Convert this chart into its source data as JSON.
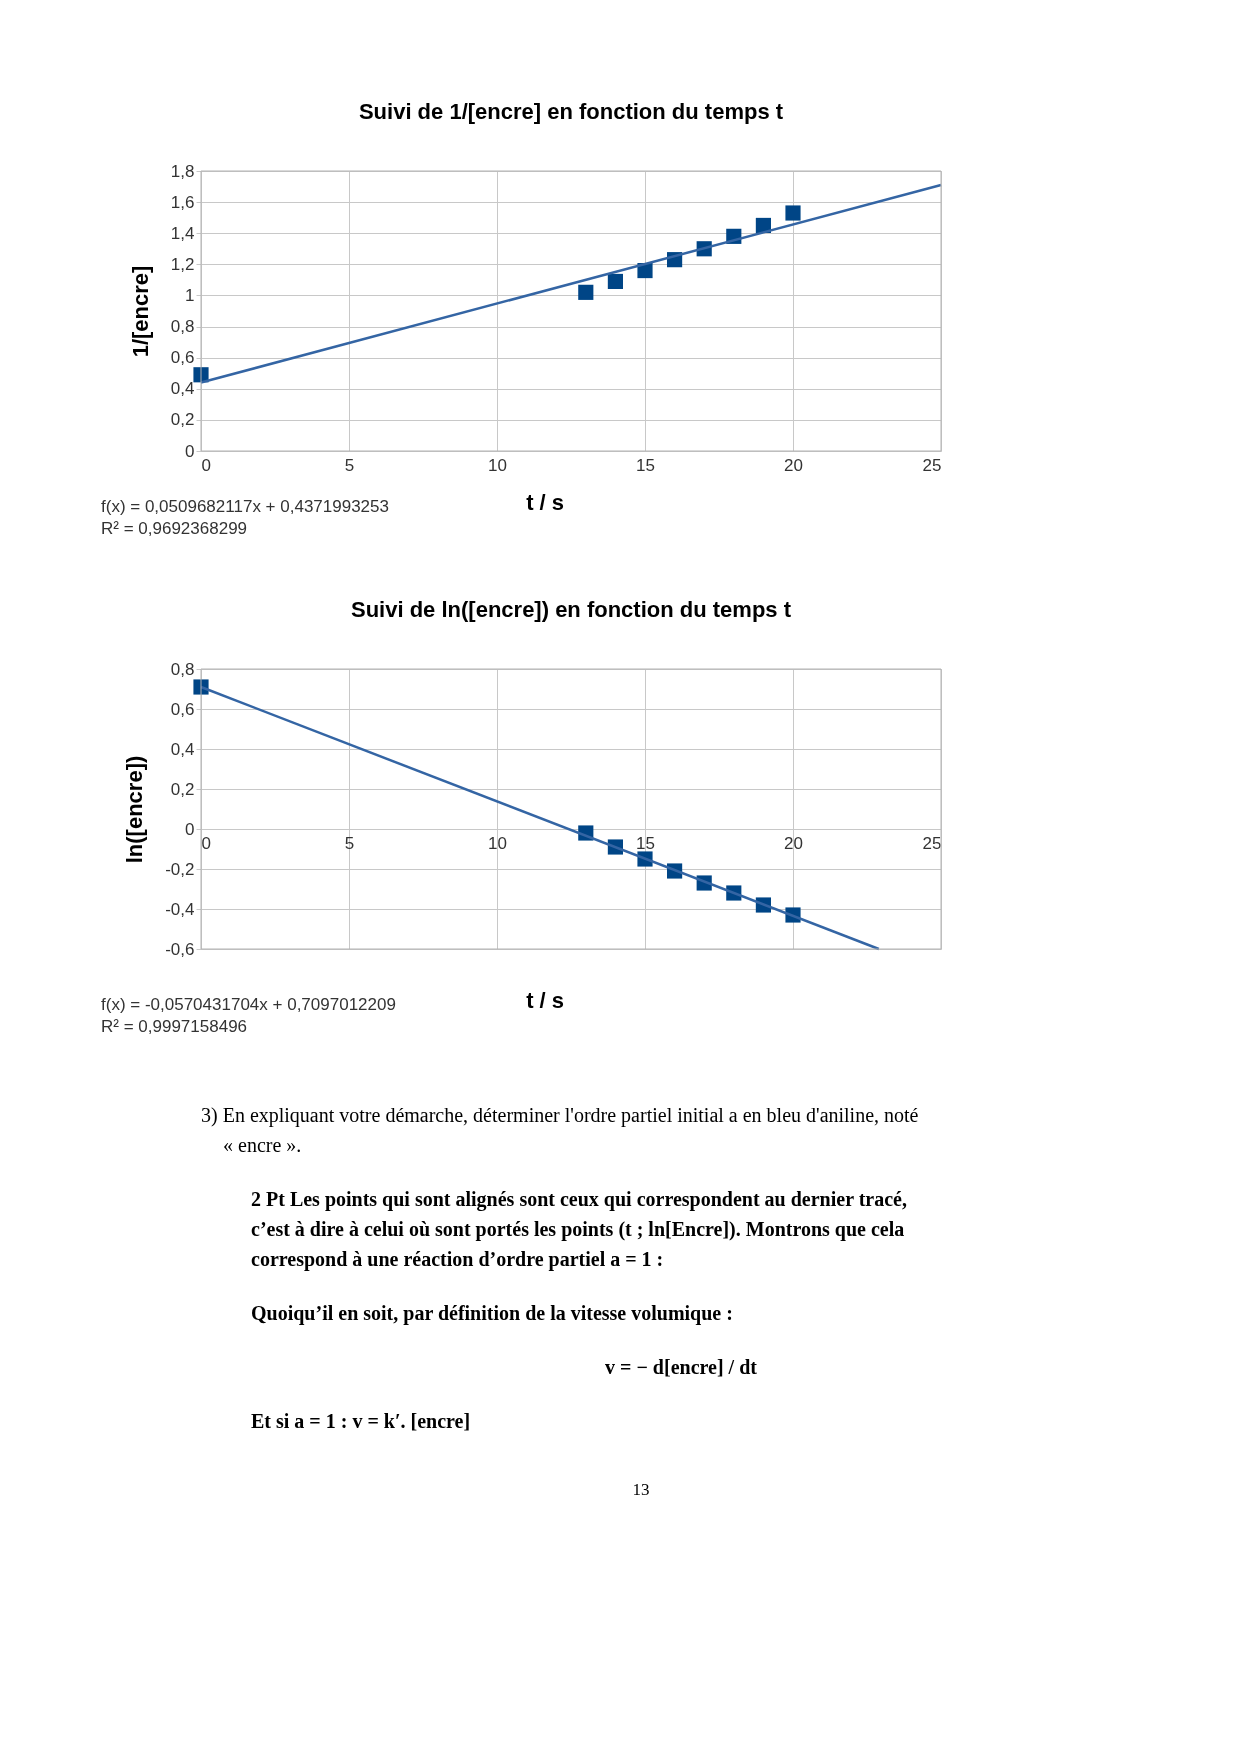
{
  "chart_data": [
    {
      "type": "scatter",
      "title": "Suivi de 1/[encre] en fonction du temps t",
      "xlabel": "t / s",
      "ylabel": "1/[encre]",
      "x": [
        0,
        13,
        14,
        15,
        16,
        17,
        18,
        19,
        20
      ],
      "series": [
        {
          "type": "scatter",
          "color": "#004586",
          "marker": "square",
          "values": [
            0.49,
            1.02,
            1.09,
            1.16,
            1.23,
            1.3,
            1.38,
            1.45,
            1.53
          ]
        },
        {
          "type": "line",
          "color": "#3465a4",
          "marker": "none",
          "line_style": "solid",
          "x": [
            0,
            25
          ],
          "values": [
            0.44,
            1.71
          ]
        }
      ],
      "xlim": [
        0,
        25
      ],
      "xticks": [
        0,
        5,
        10,
        15,
        20,
        25
      ],
      "ylim": [
        0,
        1.8
      ],
      "yticks": [
        {
          "value": 0,
          "label": "0"
        },
        {
          "value": 0.2,
          "label": "0,2"
        },
        {
          "value": 0.4,
          "label": "0,4"
        },
        {
          "value": 0.6,
          "label": "0,6"
        },
        {
          "value": 0.8,
          "label": "0,8"
        },
        {
          "value": 1,
          "label": "1"
        },
        {
          "value": 1.2,
          "label": "1,2"
        },
        {
          "value": 1.4,
          "label": "1,4"
        },
        {
          "value": 1.6,
          "label": "1,6"
        },
        {
          "value": 1.8,
          "label": "1,8"
        }
      ],
      "grid": true,
      "annotations": [
        "f(x) = 0,0509682117x + 0,4371993253",
        "R² = 0,9692368299"
      ]
    },
    {
      "type": "scatter",
      "title": "Suivi de ln([encre]) en fonction du temps t",
      "xlabel": "t / s",
      "ylabel": "ln([encre])",
      "x": [
        0,
        13,
        14,
        15,
        16,
        17,
        18,
        19,
        20
      ],
      "series": [
        {
          "type": "scatter",
          "color": "#004586",
          "marker": "square",
          "values": [
            0.71,
            -0.02,
            -0.09,
            -0.15,
            -0.21,
            -0.27,
            -0.32,
            -0.38,
            -0.43
          ]
        },
        {
          "type": "line",
          "color": "#3465a4",
          "marker": "none",
          "line_style": "solid",
          "x": [
            0,
            22.9
          ],
          "values": [
            0.71,
            -0.6
          ]
        }
      ],
      "xlim": [
        0,
        25
      ],
      "xticks": [
        0,
        5,
        10,
        15,
        20,
        25
      ],
      "ylim": [
        -0.6,
        0.8
      ],
      "yticks": [
        {
          "value": -0.6,
          "label": "-0,6"
        },
        {
          "value": -0.4,
          "label": "-0,4"
        },
        {
          "value": -0.2,
          "label": "-0,2"
        },
        {
          "value": 0,
          "label": "0"
        },
        {
          "value": 0.2,
          "label": "0,2"
        },
        {
          "value": 0.4,
          "label": "0,4"
        },
        {
          "value": 0.6,
          "label": "0,6"
        },
        {
          "value": 0.8,
          "label": "0,8"
        }
      ],
      "grid": true,
      "annotations": [
        "f(x) = -0,0570431704x + 0,7097012209",
        "R² = 0,9997158496"
      ]
    },
    {
      "type": "other",
      "annotations": [
        "3)  En expliquant votre démarche, déterminer l'ordre partiel initial a en bleu d'aniline, noté",
        "« encre ».",
        "2 Pt Les points qui sont alignés sont ceux qui correspondent au dernier tracé,",
        "c’est à dire à celui où sont portés les points (t ; ln[Encre]). Montrons que cela",
        "correspond à une réaction d’ordre partiel a = 1 :",
        "Quoiqu’il en soit, par définition de la vitesse volumique :",
        "v = − d[encre] / dt",
        "Et si a = 1 : v = k′. [encre]",
        "13"
      ]
    }
  ]
}
